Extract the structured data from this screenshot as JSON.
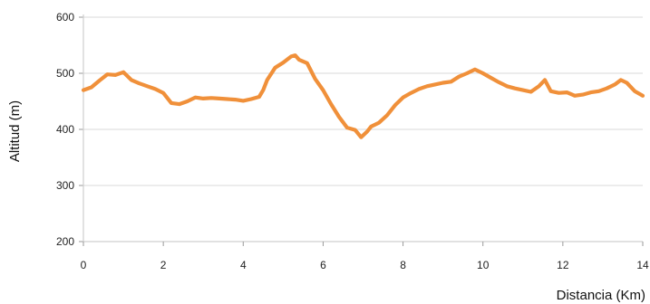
{
  "chart_data": {
    "type": "line",
    "xlabel": "Distancia (Km)",
    "ylabel": "Altitud (m)",
    "xlim": [
      0,
      14
    ],
    "ylim": [
      200,
      600
    ],
    "xticks": [
      0,
      2,
      4,
      6,
      8,
      10,
      12,
      14
    ],
    "yticks": [
      200,
      300,
      400,
      500,
      600
    ],
    "grid": "horizontal",
    "line_color": "#f0903a",
    "series": [
      {
        "x": [
          0,
          0.2,
          0.4,
          0.6,
          0.8,
          1.0,
          1.2,
          1.4,
          1.6,
          1.8,
          2.0,
          2.2,
          2.4,
          2.6,
          2.8,
          3.0,
          3.2,
          3.4,
          3.6,
          3.8,
          4.0,
          4.2,
          4.4,
          4.5,
          4.6,
          4.8,
          5.0,
          5.2,
          5.3,
          5.4,
          5.6,
          5.8,
          6.0,
          6.2,
          6.4,
          6.6,
          6.8,
          6.95,
          7.1,
          7.2,
          7.4,
          7.6,
          7.8,
          8.0,
          8.2,
          8.4,
          8.6,
          8.8,
          9.0,
          9.2,
          9.4,
          9.6,
          9.8,
          10.0,
          10.2,
          10.4,
          10.6,
          10.8,
          11.0,
          11.2,
          11.4,
          11.55,
          11.7,
          11.9,
          12.1,
          12.3,
          12.5,
          12.7,
          12.9,
          13.1,
          13.3,
          13.45,
          13.6,
          13.8,
          14.0
        ],
        "y": [
          470,
          475,
          487,
          498,
          497,
          502,
          488,
          482,
          477,
          472,
          465,
          447,
          445,
          450,
          457,
          455,
          456,
          455,
          454,
          453,
          451,
          454,
          458,
          470,
          488,
          510,
          519,
          530,
          532,
          524,
          518,
          490,
          470,
          445,
          422,
          403,
          399,
          386,
          396,
          405,
          412,
          425,
          443,
          457,
          465,
          472,
          477,
          480,
          483,
          485,
          494,
          500,
          507,
          500,
          492,
          484,
          477,
          473,
          470,
          467,
          477,
          488,
          468,
          465,
          466,
          460,
          462,
          466,
          468,
          473,
          480,
          488,
          483,
          468,
          460
        ]
      }
    ]
  }
}
